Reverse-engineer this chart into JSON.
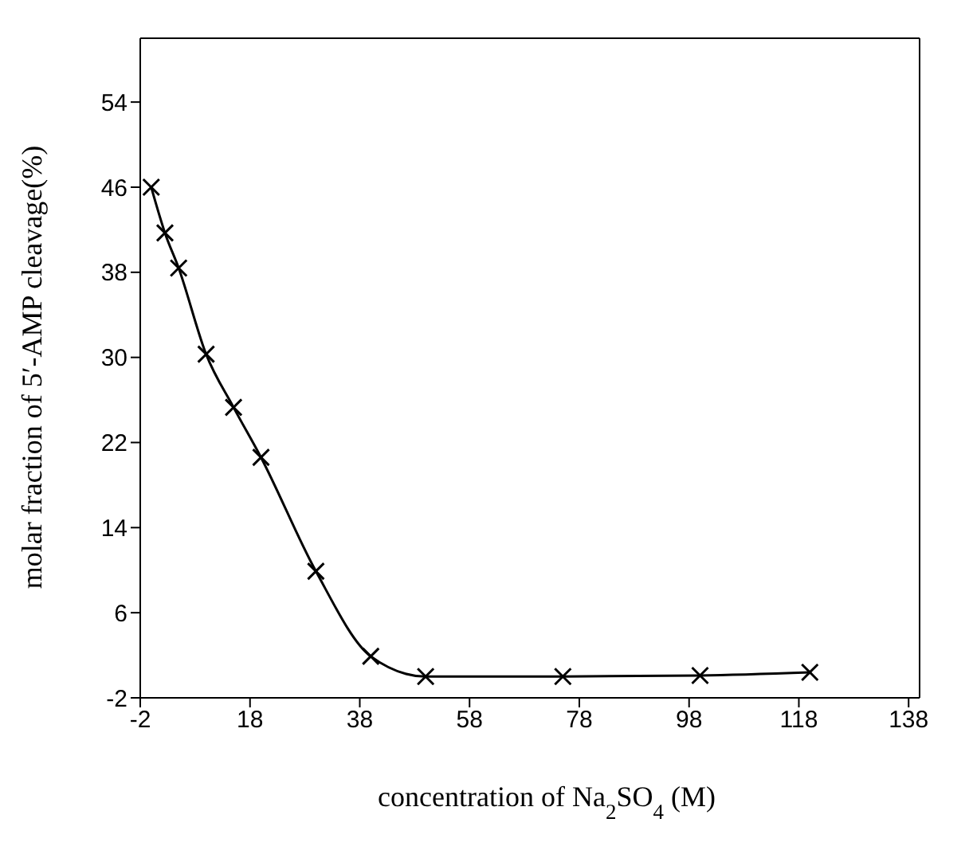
{
  "chart_data": {
    "type": "line",
    "xlabel": "concentration of Na$_{2}$SO$_{4}$ (M)",
    "ylabel": "molar fraction of 5′-AMP cleavage(%)",
    "x": [
      0,
      2.5,
      5,
      10,
      15,
      20,
      30,
      40,
      50,
      75,
      100,
      120
    ],
    "series": [
      {
        "color": "#000000",
        "values": [
          46,
          41.7,
          38.4,
          30.3,
          25.3,
          20.6,
          9.9,
          1.9,
          0,
          0,
          0.1,
          0.4
        ]
      }
    ],
    "xlim": [
      -2,
      140
    ],
    "xticks": [
      -2,
      18,
      38,
      58,
      78,
      98,
      118,
      138
    ],
    "ylim": [
      -2,
      60
    ],
    "yticks": [
      -2,
      6,
      14,
      22,
      30,
      38,
      46,
      54
    ],
    "grid": false,
    "legend": false,
    "marker": "cross",
    "line_style": "solid"
  }
}
